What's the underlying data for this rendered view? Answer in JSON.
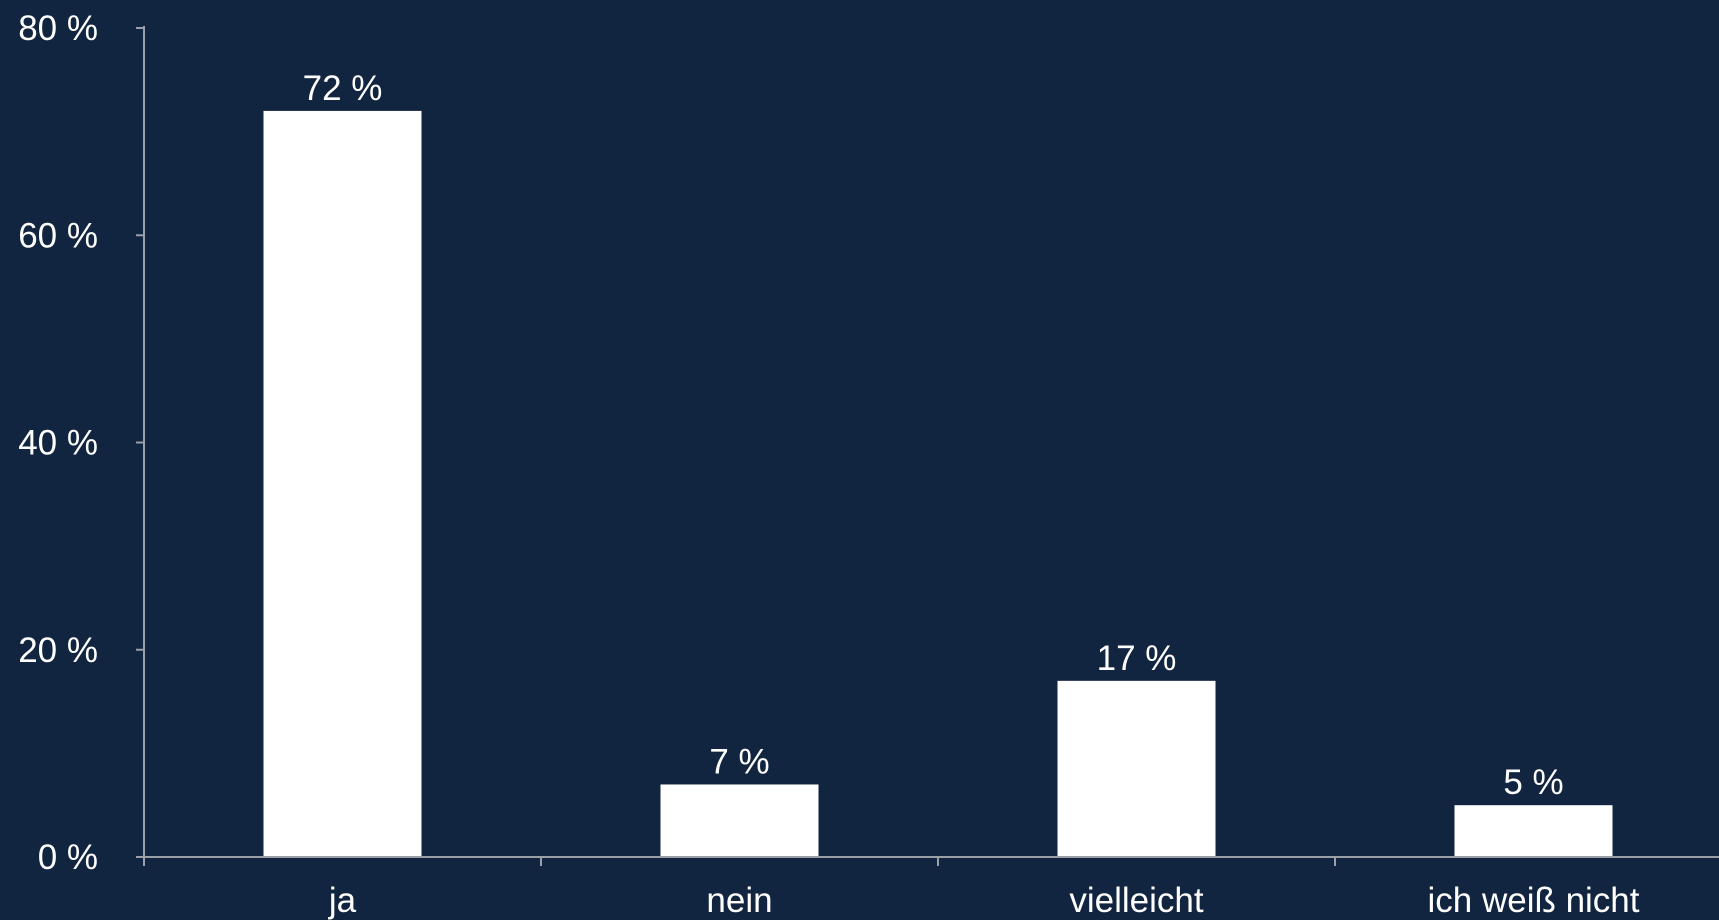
{
  "chart_data": {
    "type": "bar",
    "categories": [
      "ja",
      "nein",
      "vielleicht",
      "ich weiß nicht"
    ],
    "values": [
      72,
      7,
      17,
      5
    ],
    "data_labels": [
      "72 %",
      "7 %",
      "17 %",
      "5 %"
    ],
    "ylim": [
      0,
      80
    ],
    "yticks": [
      0,
      20,
      40,
      60,
      80
    ],
    "ytick_labels": [
      "0 %",
      "20 %",
      "40 %",
      "60 %",
      "80 %"
    ],
    "grid": false,
    "legend": "none",
    "colors": {
      "background": "#122540",
      "bar": "#ffffff",
      "axis": "#9a9fa8",
      "text": "#ffffff"
    }
  }
}
